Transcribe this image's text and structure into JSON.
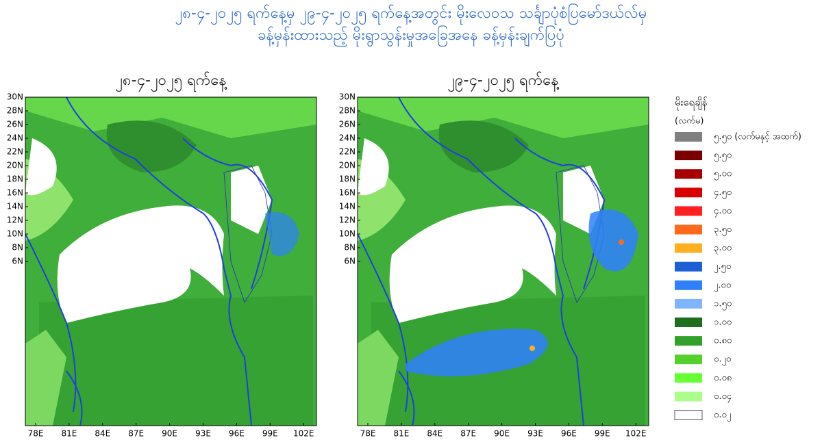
{
  "header": {
    "title_line1": "၂၈-၄-၂၀၂၅ ရက်နေ့မှ ၂၉-၄-၂၀၂၅ ရက်နေ့အတွင်း မိုးလေဝသ သင်္ချာပုံစံပြမော်ဒယ်လ်မှ",
    "title_line2": "ခန့်မှန်းထားသည့် မိုးရွာသွန်းမှုအခြေအနေ ခန့်မှန်းချက်ပြပုံ"
  },
  "maps": [
    {
      "title": "၂၈-၄-၂၀၂၅ ရက်နေ့"
    },
    {
      "title": "၂၉-၄-၂၀၂၅ ရက်နေ့"
    }
  ],
  "axes": {
    "lat_labels": [
      "30N",
      "28N",
      "26N",
      "24N",
      "22N",
      "20N",
      "18N",
      "16N",
      "14N",
      "12N",
      "10N",
      "8N",
      "6N"
    ],
    "lon_labels": [
      "78E",
      "81E",
      "84E",
      "87E",
      "90E",
      "93E",
      "96E",
      "99E",
      "102E"
    ]
  },
  "legend": {
    "title": "မိုးရေချိန်",
    "unit": "(လက်မ)",
    "items": [
      "၅.၅၀ (လက်မနှင့် အထက်)",
      "၅.၅၀",
      "၅.၀၀",
      "၄.၅၀",
      "၄.၀၀",
      "၃.၅၀",
      "၃.၀၀",
      "၂.၅၀",
      "၂.၀၀",
      "၁.၅၀",
      "၁.၀၀",
      "၀.၈၀",
      "၀.၂၀",
      "၀.၀၈",
      "၀.၀၄",
      "၀.၀၂"
    ]
  }
}
